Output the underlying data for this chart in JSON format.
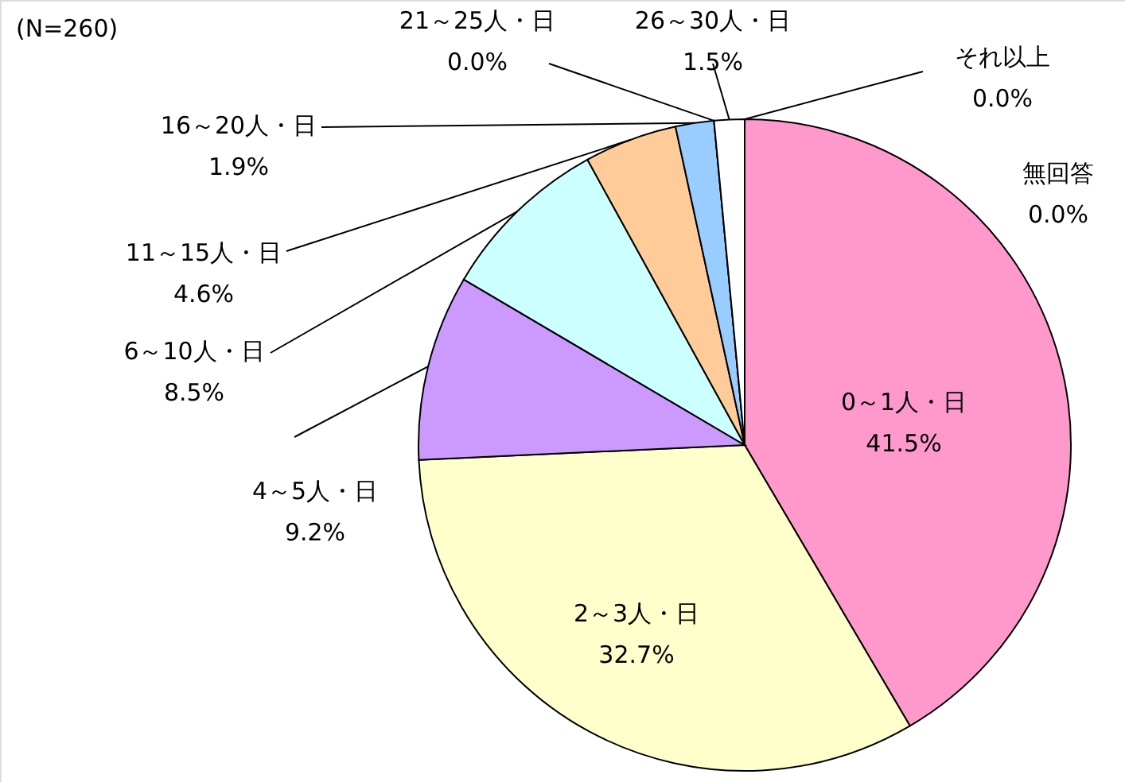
{
  "chart_data": {
    "type": "pie",
    "categories": [
      "0～1人・日",
      "2～3人・日",
      "4～5人・日",
      "6～10人・日",
      "11～15人・日",
      "16～20人・日",
      "21～25人・日",
      "26～30人・日",
      "それ以上",
      "無回答"
    ],
    "values": [
      41.5,
      32.7,
      9.2,
      8.5,
      4.6,
      1.9,
      0.0,
      1.5,
      0.0,
      0.0
    ],
    "colors": [
      "#ff99cc",
      "#ffffcc",
      "#cc99ff",
      "#ccffff",
      "#ffcc99",
      "#99ccff",
      "#ffffff",
      "#ffffff",
      "#ffffff",
      "#ffffff"
    ],
    "value_labels": [
      "41.5%",
      "32.7%",
      "9.2%",
      "8.5%",
      "4.6%",
      "1.9%",
      "0.0%",
      "1.5%",
      "0.0%",
      "0.0%"
    ],
    "annotations": [
      "(N=260)"
    ]
  }
}
